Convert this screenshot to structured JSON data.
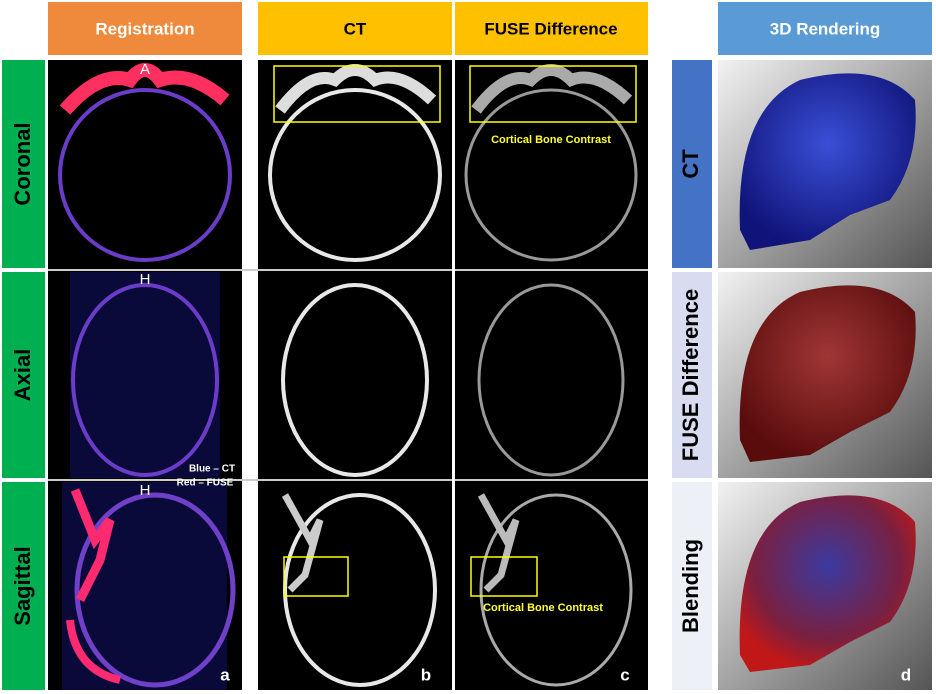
{
  "header": {
    "columns": [
      "Registration",
      "CT",
      "FUSE Difference"
    ],
    "rendering": "3D Rendering"
  },
  "rows": [
    "Coronal",
    "Axial",
    "Sagittal"
  ],
  "orientation_labels": [
    "A",
    "H",
    "H"
  ],
  "legend": [
    "Blue – CT",
    "Red – FUSE"
  ],
  "annotations": [
    "Cortical Bone Contrast",
    "Cortical Bone Contrast"
  ],
  "panel_letters": [
    "a",
    "b",
    "c",
    "d"
  ],
  "rendering_rows": [
    "CT",
    "FUSE Difference",
    "Blending"
  ]
}
